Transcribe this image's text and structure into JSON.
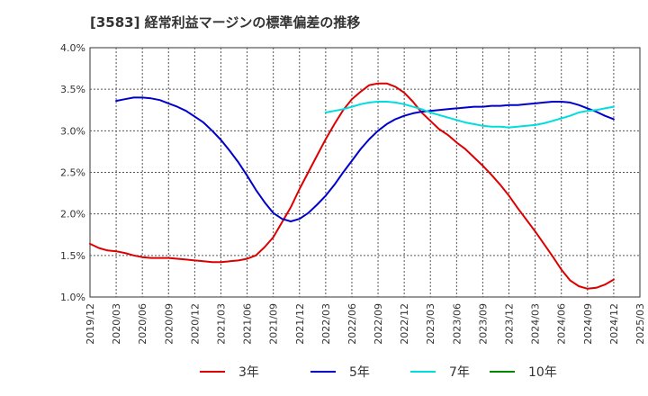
{
  "chart_data": {
    "type": "line",
    "title": "[3583]  経常利益マージンの標準偏差の推移",
    "xlabel": "",
    "ylabel": "",
    "x_ticks": [
      "2019/12",
      "2020/03",
      "2020/06",
      "2020/09",
      "2020/12",
      "2021/03",
      "2021/06",
      "2021/09",
      "2021/12",
      "2022/03",
      "2022/06",
      "2022/09",
      "2022/12",
      "2023/03",
      "2023/06",
      "2023/09",
      "2023/12",
      "2024/03",
      "2024/06",
      "2024/09",
      "2024/12",
      "2025/03"
    ],
    "y_ticks": [
      "1.0%",
      "1.5%",
      "2.0%",
      "2.5%",
      "3.0%",
      "3.5%",
      "4.0%"
    ],
    "ylim": [
      1.0,
      4.0
    ],
    "grid": true,
    "legend_position": "bottom",
    "series": [
      {
        "name": "3年",
        "color": "#dd0000",
        "points": [
          [
            "2019/12",
            1.64
          ],
          [
            "2020/01",
            1.59
          ],
          [
            "2020/02",
            1.56
          ],
          [
            "2020/03",
            1.55
          ],
          [
            "2020/04",
            1.53
          ],
          [
            "2020/05",
            1.5
          ],
          [
            "2020/06",
            1.48
          ],
          [
            "2020/07",
            1.47
          ],
          [
            "2020/08",
            1.47
          ],
          [
            "2020/09",
            1.47
          ],
          [
            "2020/10",
            1.46
          ],
          [
            "2020/11",
            1.45
          ],
          [
            "2020/12",
            1.44
          ],
          [
            "2021/01",
            1.43
          ],
          [
            "2021/02",
            1.42
          ],
          [
            "2021/03",
            1.42
          ],
          [
            "2021/04",
            1.43
          ],
          [
            "2021/05",
            1.44
          ],
          [
            "2021/06",
            1.46
          ],
          [
            "2021/07",
            1.5
          ],
          [
            "2021/08",
            1.6
          ],
          [
            "2021/09",
            1.72
          ],
          [
            "2021/10",
            1.9
          ],
          [
            "2021/11",
            2.08
          ],
          [
            "2021/12",
            2.3
          ],
          [
            "2022/01",
            2.5
          ],
          [
            "2022/02",
            2.7
          ],
          [
            "2022/03",
            2.9
          ],
          [
            "2022/04",
            3.08
          ],
          [
            "2022/05",
            3.25
          ],
          [
            "2022/06",
            3.38
          ],
          [
            "2022/07",
            3.47
          ],
          [
            "2022/08",
            3.55
          ],
          [
            "2022/09",
            3.57
          ],
          [
            "2022/10",
            3.57
          ],
          [
            "2022/11",
            3.53
          ],
          [
            "2022/12",
            3.46
          ],
          [
            "2023/01",
            3.35
          ],
          [
            "2023/02",
            3.22
          ],
          [
            "2023/03",
            3.12
          ],
          [
            "2023/04",
            3.02
          ],
          [
            "2023/05",
            2.95
          ],
          [
            "2023/06",
            2.86
          ],
          [
            "2023/07",
            2.78
          ],
          [
            "2023/08",
            2.68
          ],
          [
            "2023/09",
            2.58
          ],
          [
            "2023/10",
            2.47
          ],
          [
            "2023/11",
            2.35
          ],
          [
            "2023/12",
            2.22
          ],
          [
            "2024/01",
            2.07
          ],
          [
            "2024/02",
            1.93
          ],
          [
            "2024/03",
            1.79
          ],
          [
            "2024/04",
            1.64
          ],
          [
            "2024/05",
            1.49
          ],
          [
            "2024/06",
            1.33
          ],
          [
            "2024/07",
            1.2
          ],
          [
            "2024/08",
            1.13
          ],
          [
            "2024/09",
            1.1
          ],
          [
            "2024/10",
            1.11
          ],
          [
            "2024/11",
            1.15
          ],
          [
            "2024/12",
            1.21
          ]
        ]
      },
      {
        "name": "5年",
        "color": "#0000cc",
        "points": [
          [
            "2020/03",
            3.36
          ],
          [
            "2020/04",
            3.38
          ],
          [
            "2020/05",
            3.4
          ],
          [
            "2020/06",
            3.4
          ],
          [
            "2020/07",
            3.39
          ],
          [
            "2020/08",
            3.37
          ],
          [
            "2020/09",
            3.33
          ],
          [
            "2020/10",
            3.29
          ],
          [
            "2020/11",
            3.24
          ],
          [
            "2020/12",
            3.17
          ],
          [
            "2021/01",
            3.1
          ],
          [
            "2021/02",
            3.0
          ],
          [
            "2021/03",
            2.89
          ],
          [
            "2021/04",
            2.76
          ],
          [
            "2021/05",
            2.62
          ],
          [
            "2021/06",
            2.46
          ],
          [
            "2021/07",
            2.29
          ],
          [
            "2021/08",
            2.14
          ],
          [
            "2021/09",
            2.01
          ],
          [
            "2021/10",
            1.94
          ],
          [
            "2021/11",
            1.91
          ],
          [
            "2021/12",
            1.94
          ],
          [
            "2022/01",
            2.01
          ],
          [
            "2022/02",
            2.11
          ],
          [
            "2022/03",
            2.22
          ],
          [
            "2022/04",
            2.35
          ],
          [
            "2022/05",
            2.5
          ],
          [
            "2022/06",
            2.64
          ],
          [
            "2022/07",
            2.78
          ],
          [
            "2022/08",
            2.9
          ],
          [
            "2022/09",
            3.0
          ],
          [
            "2022/10",
            3.08
          ],
          [
            "2022/11",
            3.14
          ],
          [
            "2022/12",
            3.18
          ],
          [
            "2023/01",
            3.21
          ],
          [
            "2023/02",
            3.23
          ],
          [
            "2023/03",
            3.24
          ],
          [
            "2023/04",
            3.25
          ],
          [
            "2023/05",
            3.26
          ],
          [
            "2023/06",
            3.27
          ],
          [
            "2023/07",
            3.28
          ],
          [
            "2023/08",
            3.29
          ],
          [
            "2023/09",
            3.29
          ],
          [
            "2023/10",
            3.3
          ],
          [
            "2023/11",
            3.3
          ],
          [
            "2023/12",
            3.31
          ],
          [
            "2024/01",
            3.31
          ],
          [
            "2024/02",
            3.32
          ],
          [
            "2024/03",
            3.33
          ],
          [
            "2024/04",
            3.34
          ],
          [
            "2024/05",
            3.35
          ],
          [
            "2024/06",
            3.35
          ],
          [
            "2024/07",
            3.34
          ],
          [
            "2024/08",
            3.31
          ],
          [
            "2024/09",
            3.27
          ],
          [
            "2024/10",
            3.23
          ],
          [
            "2024/11",
            3.18
          ],
          [
            "2024/12",
            3.14
          ]
        ]
      },
      {
        "name": "7年",
        "color": "#00dddd",
        "points": [
          [
            "2022/03",
            3.22
          ],
          [
            "2022/04",
            3.24
          ],
          [
            "2022/05",
            3.26
          ],
          [
            "2022/06",
            3.29
          ],
          [
            "2022/07",
            3.32
          ],
          [
            "2022/08",
            3.34
          ],
          [
            "2022/09",
            3.35
          ],
          [
            "2022/10",
            3.35
          ],
          [
            "2022/11",
            3.34
          ],
          [
            "2022/12",
            3.32
          ],
          [
            "2023/01",
            3.29
          ],
          [
            "2023/02",
            3.26
          ],
          [
            "2023/03",
            3.22
          ],
          [
            "2023/04",
            3.19
          ],
          [
            "2023/05",
            3.16
          ],
          [
            "2023/06",
            3.13
          ],
          [
            "2023/07",
            3.1
          ],
          [
            "2023/08",
            3.08
          ],
          [
            "2023/09",
            3.06
          ],
          [
            "2023/10",
            3.05
          ],
          [
            "2023/11",
            3.05
          ],
          [
            "2023/12",
            3.04
          ],
          [
            "2024/01",
            3.05
          ],
          [
            "2024/02",
            3.06
          ],
          [
            "2024/03",
            3.07
          ],
          [
            "2024/04",
            3.09
          ],
          [
            "2024/05",
            3.12
          ],
          [
            "2024/06",
            3.15
          ],
          [
            "2024/07",
            3.18
          ],
          [
            "2024/08",
            3.22
          ],
          [
            "2024/09",
            3.24
          ],
          [
            "2024/10",
            3.25
          ],
          [
            "2024/11",
            3.27
          ],
          [
            "2024/12",
            3.29
          ]
        ]
      },
      {
        "name": "10年",
        "color": "#008800",
        "points": []
      }
    ]
  }
}
